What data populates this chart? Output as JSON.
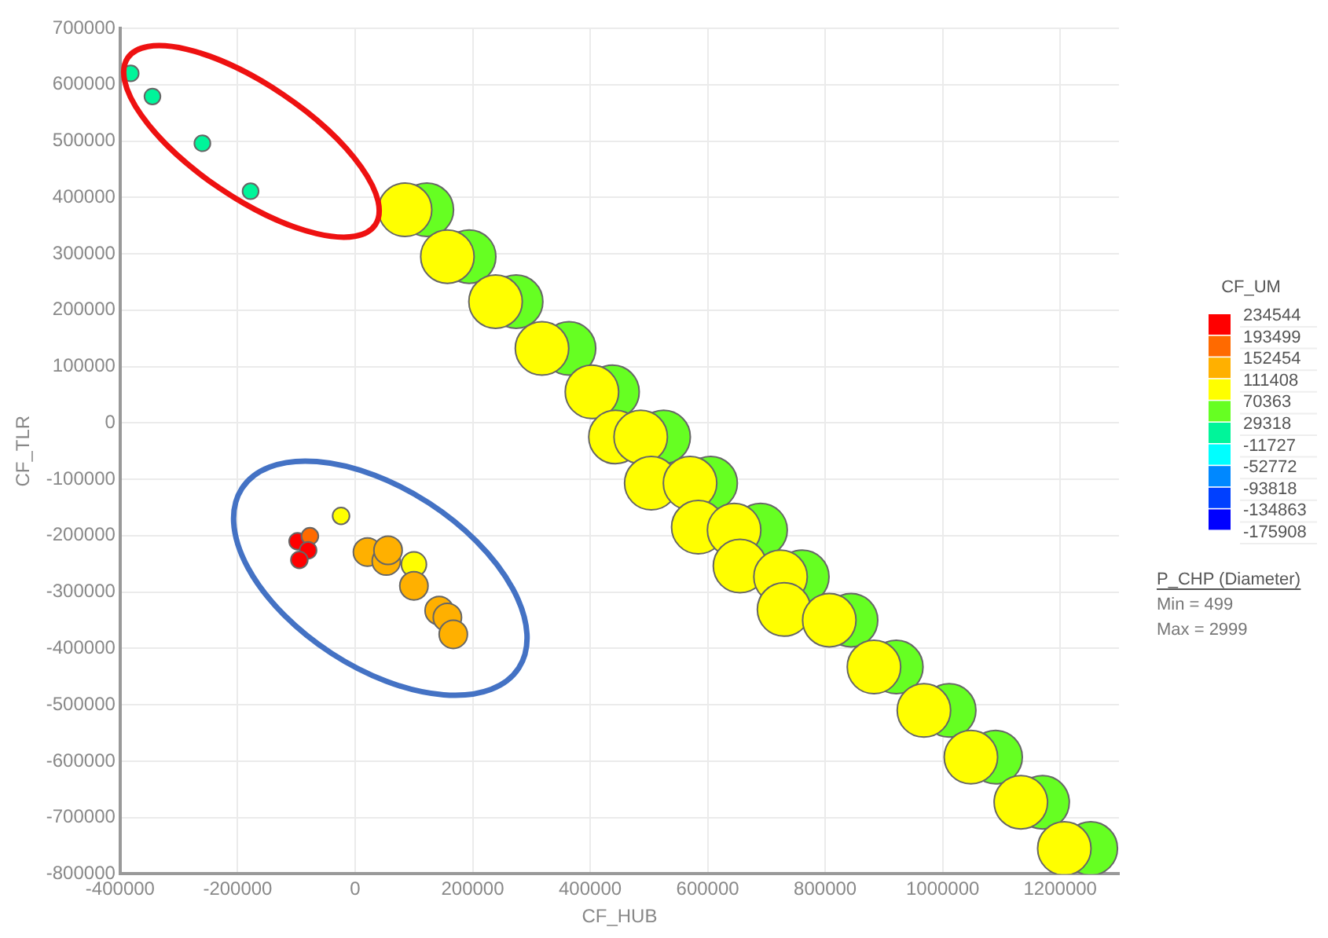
{
  "chart_data": {
    "type": "bubble",
    "xlabel": "CF_HUB",
    "ylabel": "CF_TLR",
    "clabel": "CF_UM",
    "xlim": [
      -400000,
      1300000
    ],
    "xticks": [
      -400000,
      -200000,
      0,
      200000,
      400000,
      600000,
      800000,
      1000000,
      1200000
    ],
    "ylim": [
      -800000,
      700000
    ],
    "yticks": [
      -800000,
      -700000,
      -600000,
      -500000,
      -400000,
      -300000,
      -200000,
      -100000,
      0,
      100000,
      200000,
      300000,
      400000,
      500000,
      600000,
      700000
    ],
    "grid": true,
    "clim": [
      -175908,
      234544
    ],
    "cticks": [
      -175908,
      -134863,
      -93818,
      -52772,
      -11727,
      29318,
      70363,
      111408,
      152454,
      193499,
      234544
    ],
    "annotations": [
      "P_CHP (Diameter)",
      "Min = 499",
      "Max = 2999"
    ],
    "series": [
      {
        "x": [
          -382000,
          -345000,
          -260000,
          -178000,
          -24000,
          -98000,
          -77000,
          -80000,
          -95000,
          21000,
          53000,
          56000,
          100000,
          100000,
          143000,
          157000,
          167000,
          122000,
          85000,
          194000,
          157000,
          274000,
          239000,
          364000,
          318000,
          438000,
          403000,
          525000,
          443000,
          486000,
          605000,
          504000,
          570000,
          690000,
          584000,
          645000,
          761000,
          655000,
          724000,
          844000,
          730000,
          807000,
          921000,
          883000,
          1011000,
          968000,
          1090000,
          1048000,
          1170000,
          1133000,
          1252000,
          1207000
        ],
        "values": [
          620000,
          579000,
          496000,
          411000,
          -165000,
          -210000,
          -201000,
          -226000,
          -243000,
          -229000,
          -245000,
          -226000,
          -251000,
          -289000,
          -333000,
          -345000,
          -375000,
          378000,
          378000,
          295000,
          295000,
          215000,
          215000,
          132000,
          132000,
          55000,
          55000,
          -25000,
          -25000,
          -25000,
          -107000,
          -107000,
          -107000,
          -190000,
          -185000,
          -190000,
          -273000,
          -254000,
          -273000,
          -350000,
          -331000,
          -350000,
          -433000,
          -433000,
          -510000,
          -510000,
          -593000,
          -593000,
          -673000,
          -673000,
          -755000,
          -755000
        ],
        "sizes": [
          0.09,
          0.09,
          0.09,
          0.09,
          0.1,
          0.1,
          0.1,
          0.1,
          0.1,
          0.28,
          0.28,
          0.28,
          0.22,
          0.28,
          0.28,
          0.28,
          0.28,
          1,
          1,
          1,
          1,
          1,
          1,
          1,
          1,
          1,
          1,
          1,
          1,
          1,
          1,
          1,
          1,
          1,
          1,
          1,
          1,
          1,
          1,
          1,
          1,
          1,
          1,
          1,
          1,
          1,
          1,
          1,
          1,
          1,
          1,
          1
        ],
        "cvalues": [
          10000,
          10000,
          10000,
          10000,
          90000,
          215000,
          170000,
          215000,
          215000,
          130000,
          130000,
          130000,
          90000,
          130000,
          130000,
          130000,
          130000,
          50000,
          90000,
          50000,
          90000,
          50000,
          90000,
          50000,
          90000,
          50000,
          90000,
          50000,
          90000,
          90000,
          50000,
          90000,
          90000,
          50000,
          90000,
          90000,
          50000,
          90000,
          90000,
          50000,
          90000,
          90000,
          50000,
          90000,
          50000,
          90000,
          50000,
          90000,
          50000,
          90000,
          50000,
          90000
        ]
      }
    ]
  }
}
